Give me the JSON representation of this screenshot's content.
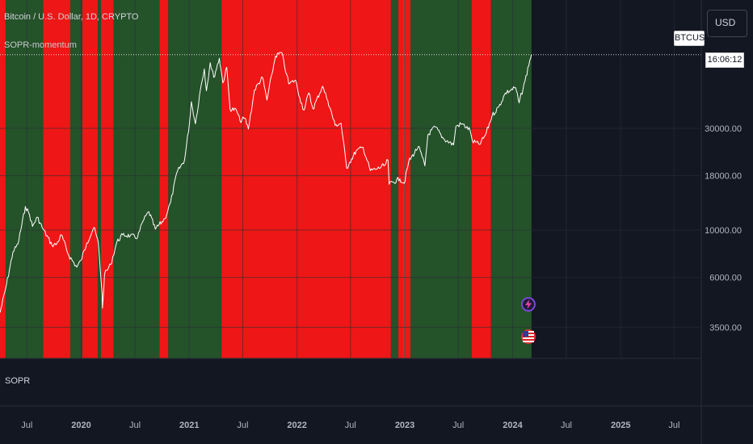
{
  "legend": {
    "title": "Bitcoin / U.S. Dollar, 1D, CRYPTO",
    "indicator": "SOPR-momentum"
  },
  "sub_pane_label": "SOPR",
  "currency_button": "USD",
  "price_tag": {
    "symbol": "BTCUSD",
    "countdown": "16:06:12"
  },
  "colors": {
    "background": "#131722",
    "green_band": "#245229",
    "red_band": "#ee1616",
    "price_line": "#ffffff",
    "axis_text": "#b2b5be",
    "grid": "#2a2e39"
  },
  "icons": [
    "lightning-event-icon",
    "us-flag-event-icon"
  ],
  "chart_data": {
    "type": "line",
    "title": "Bitcoin / U.S. Dollar, 1D, CRYPTO",
    "xlabel": "",
    "ylabel": "",
    "y_scale": "log",
    "ylim": [
      2500,
      120000
    ],
    "xlim": [
      "2019-04-01",
      "2025-10-01"
    ],
    "x_ticks": [
      {
        "date": "2019-07-01",
        "label": "Jul"
      },
      {
        "date": "2020-01-01",
        "label": "2020"
      },
      {
        "date": "2020-07-01",
        "label": "Jul"
      },
      {
        "date": "2021-01-01",
        "label": "2021"
      },
      {
        "date": "2021-07-01",
        "label": "Jul"
      },
      {
        "date": "2022-01-01",
        "label": "2022"
      },
      {
        "date": "2022-07-01",
        "label": "Jul"
      },
      {
        "date": "2023-01-01",
        "label": "2023"
      },
      {
        "date": "2023-07-01",
        "label": "Jul"
      },
      {
        "date": "2024-01-01",
        "label": "2024"
      },
      {
        "date": "2024-07-01",
        "label": "Jul"
      },
      {
        "date": "2025-01-01",
        "label": "2025"
      },
      {
        "date": "2025-07-01",
        "label": "Jul"
      }
    ],
    "y_ticks": [
      {
        "value": 3500,
        "label": "3500.00"
      },
      {
        "value": 6000,
        "label": "6000.00"
      },
      {
        "value": 10000,
        "label": "10000.00"
      },
      {
        "value": 18000,
        "label": "18000.00"
      },
      {
        "value": 30000,
        "label": "30000.00"
      }
    ],
    "series": [
      {
        "name": "BTCUSD",
        "points": [
          [
            "2019-04-01",
            4100
          ],
          [
            "2019-04-20",
            5300
          ],
          [
            "2019-05-15",
            7900
          ],
          [
            "2019-06-01",
            8600
          ],
          [
            "2019-06-26",
            12900
          ],
          [
            "2019-07-10",
            11800
          ],
          [
            "2019-07-20",
            10400
          ],
          [
            "2019-08-05",
            11500
          ],
          [
            "2019-08-25",
            10100
          ],
          [
            "2019-09-24",
            8500
          ],
          [
            "2019-10-10",
            8600
          ],
          [
            "2019-10-26",
            9500
          ],
          [
            "2019-11-20",
            7600
          ],
          [
            "2019-12-17",
            6700
          ],
          [
            "2019-12-31",
            7200
          ],
          [
            "2020-01-20",
            8700
          ],
          [
            "2020-02-13",
            10300
          ],
          [
            "2020-02-28",
            8700
          ],
          [
            "2020-03-12",
            5000
          ],
          [
            "2020-03-13",
            4300
          ],
          [
            "2020-03-20",
            6200
          ],
          [
            "2020-04-10",
            6900
          ],
          [
            "2020-05-01",
            8800
          ],
          [
            "2020-05-20",
            9500
          ],
          [
            "2020-06-15",
            9400
          ],
          [
            "2020-07-10",
            9250
          ],
          [
            "2020-07-28",
            11000
          ],
          [
            "2020-08-17",
            12200
          ],
          [
            "2020-09-08",
            10100
          ],
          [
            "2020-10-10",
            11300
          ],
          [
            "2020-10-30",
            13500
          ],
          [
            "2020-11-20",
            18600
          ],
          [
            "2020-12-16",
            21300
          ],
          [
            "2021-01-02",
            32000
          ],
          [
            "2021-01-08",
            40000
          ],
          [
            "2021-01-22",
            31500
          ],
          [
            "2021-02-08",
            46000
          ],
          [
            "2021-02-21",
            57000
          ],
          [
            "2021-02-28",
            45000
          ],
          [
            "2021-03-13",
            61000
          ],
          [
            "2021-03-25",
            52000
          ],
          [
            "2021-04-13",
            64000
          ],
          [
            "2021-04-25",
            49000
          ],
          [
            "2021-05-08",
            58000
          ],
          [
            "2021-05-19",
            37000
          ],
          [
            "2021-06-10",
            36500
          ],
          [
            "2021-06-22",
            32500
          ],
          [
            "2021-07-08",
            33500
          ],
          [
            "2021-07-20",
            29800
          ],
          [
            "2021-08-10",
            45500
          ],
          [
            "2021-09-06",
            52000
          ],
          [
            "2021-09-21",
            40700
          ],
          [
            "2021-10-08",
            54000
          ],
          [
            "2021-10-20",
            65500
          ],
          [
            "2021-11-10",
            68000
          ],
          [
            "2021-11-26",
            54000
          ],
          [
            "2021-12-04",
            48500
          ],
          [
            "2021-12-27",
            50500
          ],
          [
            "2022-01-10",
            41800
          ],
          [
            "2022-01-24",
            36500
          ],
          [
            "2022-02-10",
            44000
          ],
          [
            "2022-02-24",
            37000
          ],
          [
            "2022-03-28",
            47300
          ],
          [
            "2022-04-15",
            40500
          ],
          [
            "2022-05-10",
            31000
          ],
          [
            "2022-05-30",
            31700
          ],
          [
            "2022-06-18",
            19500
          ],
          [
            "2022-06-28",
            20800
          ],
          [
            "2022-07-20",
            23500
          ],
          [
            "2022-08-13",
            24400
          ],
          [
            "2022-09-06",
            19000
          ],
          [
            "2022-09-30",
            19400
          ],
          [
            "2022-10-25",
            20100
          ],
          [
            "2022-11-05",
            21300
          ],
          [
            "2022-11-09",
            16400
          ],
          [
            "2022-12-15",
            17400
          ],
          [
            "2022-12-30",
            16550
          ],
          [
            "2023-01-14",
            20900
          ],
          [
            "2023-02-16",
            24700
          ],
          [
            "2023-03-10",
            20000
          ],
          [
            "2023-03-20",
            28000
          ],
          [
            "2023-04-14",
            30500
          ],
          [
            "2023-05-12",
            26800
          ],
          [
            "2023-06-15",
            25100
          ],
          [
            "2023-06-23",
            30700
          ],
          [
            "2023-07-14",
            31500
          ],
          [
            "2023-08-10",
            29400
          ],
          [
            "2023-08-18",
            26100
          ],
          [
            "2023-09-11",
            25200
          ],
          [
            "2023-10-01",
            27900
          ],
          [
            "2023-10-24",
            34500
          ],
          [
            "2023-11-15",
            37800
          ],
          [
            "2023-12-08",
            44000
          ],
          [
            "2024-01-11",
            46600
          ],
          [
            "2024-01-23",
            39500
          ],
          [
            "2024-02-12",
            50000
          ],
          [
            "2024-02-28",
            62500
          ],
          [
            "2024-03-05",
            66500
          ]
        ]
      }
    ],
    "background_bands": [
      {
        "start": "2019-04-01",
        "end": "2019-04-20",
        "signal": "red"
      },
      {
        "start": "2019-04-20",
        "end": "2019-08-25",
        "signal": "green"
      },
      {
        "start": "2019-08-25",
        "end": "2019-11-25",
        "signal": "red"
      },
      {
        "start": "2019-11-25",
        "end": "2020-01-05",
        "signal": "green"
      },
      {
        "start": "2020-01-05",
        "end": "2020-02-26",
        "signal": "red"
      },
      {
        "start": "2020-02-26",
        "end": "2020-03-08",
        "signal": "green"
      },
      {
        "start": "2020-03-08",
        "end": "2020-04-20",
        "signal": "red"
      },
      {
        "start": "2020-04-20",
        "end": "2020-06-01",
        "signal": "green"
      },
      {
        "start": "2020-06-01",
        "end": "2020-09-22",
        "signal": "green"
      },
      {
        "start": "2020-09-22",
        "end": "2020-10-22",
        "signal": "red"
      },
      {
        "start": "2020-10-22",
        "end": "2021-04-20",
        "signal": "green"
      },
      {
        "start": "2021-04-20",
        "end": "2022-11-15",
        "signal": "red"
      },
      {
        "start": "2022-11-15",
        "end": "2022-12-10",
        "signal": "green"
      },
      {
        "start": "2022-12-10",
        "end": "2023-01-20",
        "signal": "red"
      },
      {
        "start": "2023-01-20",
        "end": "2023-08-15",
        "signal": "green"
      },
      {
        "start": "2023-08-15",
        "end": "2023-10-20",
        "signal": "red"
      },
      {
        "start": "2023-10-20",
        "end": "2024-03-05",
        "signal": "green"
      }
    ],
    "band_dividers": [
      "2022-12-30",
      "2023-01-02"
    ],
    "last_price_line": true,
    "grid": true
  }
}
